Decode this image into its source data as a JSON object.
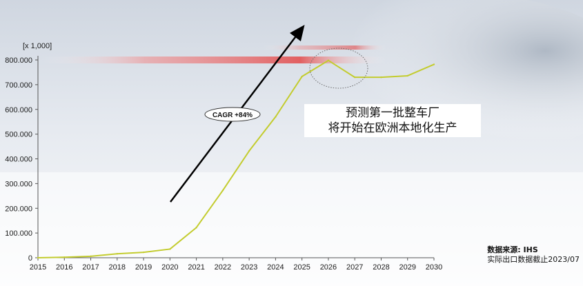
{
  "chart_data": {
    "type": "line",
    "unit_label": "[x 1,000]",
    "x": [
      "2015",
      "2016",
      "2017",
      "2018",
      "2019",
      "2020",
      "2021",
      "2022",
      "2023",
      "2024",
      "2025",
      "2026",
      "2027",
      "2028",
      "2029",
      "2030"
    ],
    "series": [
      {
        "values": [
          0,
          2,
          6,
          16,
          22,
          35,
          122,
          272,
          432,
          570,
          733,
          798,
          730,
          730,
          736,
          782
        ]
      }
    ],
    "y_ticks": [
      "0",
      "100.000",
      "200.000",
      "300.000",
      "400.000",
      "500.000",
      "600.000",
      "700.000",
      "800.000"
    ],
    "ylim": [
      0,
      800
    ],
    "grid": false,
    "line_color": "#c3cc2e",
    "annotations": {
      "cagr": "CAGR +84%",
      "callout_line1": "预测第一批整车厂",
      "callout_line2": "将开始在欧洲本地化生产"
    }
  },
  "source": {
    "label": "数据来源: IHS",
    "note": "实际出口数据截止2023/07"
  }
}
